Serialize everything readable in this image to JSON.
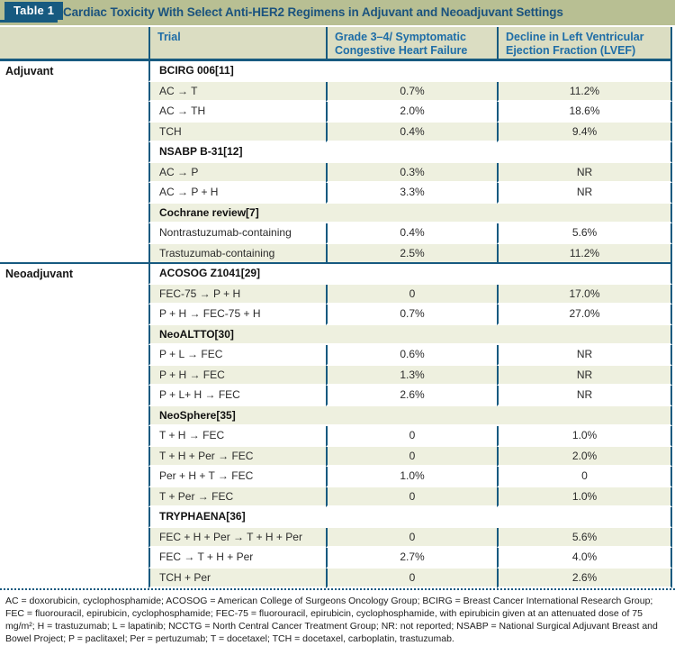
{
  "title_bar": {
    "tag": "Table 1",
    "title": "Cardiac Toxicity With Select Anti-HER2 Regimens in Adjuvant and Neoadjuvant Settings"
  },
  "columns": {
    "category": "",
    "trial": "Trial",
    "chf": "Grade 3–4/ Symptomatic Congestive Heart Failure",
    "lvef": "Decline in Left Ventricular Ejection Fraction (LVEF)"
  },
  "sections": [
    {
      "label": "Adjuvant"
    },
    {
      "label": "Neoadjuvant"
    }
  ],
  "rows": [
    {
      "type": "trial",
      "label": "BCIRG 006[11]"
    },
    {
      "type": "data",
      "label": "AC → T",
      "chf": "0.7%",
      "lvef": "11.2%"
    },
    {
      "type": "data",
      "label": "AC → TH",
      "chf": "2.0%",
      "lvef": "18.6%"
    },
    {
      "type": "data",
      "label": "TCH",
      "chf": "0.4%",
      "lvef": "9.4%"
    },
    {
      "type": "trial",
      "label": "NSABP B-31[12]"
    },
    {
      "type": "data",
      "label": "AC → P",
      "chf": "0.3%",
      "lvef": "NR"
    },
    {
      "type": "data",
      "label": "AC → P + H",
      "chf": "3.3%",
      "lvef": "NR"
    },
    {
      "type": "trial",
      "label": "Cochrane review[7]"
    },
    {
      "type": "data",
      "label": "Nontrastuzumab-containing",
      "chf": "0.4%",
      "lvef": "5.6%"
    },
    {
      "type": "data",
      "label": "Trastuzumab-containing",
      "chf": "2.5%",
      "lvef": "11.2%"
    },
    {
      "type": "trial",
      "label": "ACOSOG Z1041[29]"
    },
    {
      "type": "data",
      "label": "FEC-75 → P + H",
      "chf": "0",
      "lvef": "17.0%"
    },
    {
      "type": "data",
      "label": "P + H → FEC-75 + H",
      "chf": "0.7%",
      "lvef": "27.0%"
    },
    {
      "type": "trial",
      "label": "NeoALTTO[30]"
    },
    {
      "type": "data",
      "label": "P + L → FEC",
      "chf": "0.6%",
      "lvef": "NR"
    },
    {
      "type": "data",
      "label": "P + H → FEC",
      "chf": "1.3%",
      "lvef": "NR"
    },
    {
      "type": "data",
      "label": "P + L+ H → FEC",
      "chf": "2.6%",
      "lvef": "NR"
    },
    {
      "type": "trial",
      "label": "NeoSphere[35]"
    },
    {
      "type": "data",
      "label": "T + H → FEC",
      "chf": "0",
      "lvef": "1.0%"
    },
    {
      "type": "data",
      "label": "T + H + Per → FEC",
      "chf": "0",
      "lvef": "2.0%"
    },
    {
      "type": "data",
      "label": "Per + H + T → FEC",
      "chf": "1.0%",
      "lvef": "0"
    },
    {
      "type": "data",
      "label": "T + Per → FEC",
      "chf": "0",
      "lvef": "1.0%"
    },
    {
      "type": "trial",
      "label": "TRYPHAENA[36]"
    },
    {
      "type": "data",
      "label": "FEC + H + Per → T + H + Per",
      "chf": "0",
      "lvef": "5.6%"
    },
    {
      "type": "data",
      "label": "FEC → T + H + Per",
      "chf": "2.7%",
      "lvef": "4.0%"
    },
    {
      "type": "data",
      "label": "TCH + Per",
      "chf": "0",
      "lvef": "2.6%"
    }
  ],
  "footnote": "AC = doxorubicin, cyclophosphamide; ACOSOG = American College of Surgeons Oncology Group; BCIRG = Breast Cancer International Research Group; FEC = fluorouracil, epirubicin, cyclophosphamide; FEC-75 = fluorouracil, epirubicin, cyclophosphamide, with epirubicin given at an attenuated dose of 75 mg/m²; H = trastuzumab; L = lapatinib; NCCTG = North Central Cancer Treatment Group; NR: not reported; NSABP = National Surgical Adjuvant Breast and Bowel Project; P = paclitaxel; Per = pertuzumab; T = docetaxel; TCH = docetaxel, carboplatin, trastuzumab.",
  "colors": {
    "accent_dark_blue": "#175a80",
    "title_bar_bg": "#b8bf93",
    "title_text": "#1b537e",
    "header_bg": "#dbddc2",
    "header_text": "#1e6da7",
    "row_shade": "#eef0df"
  }
}
